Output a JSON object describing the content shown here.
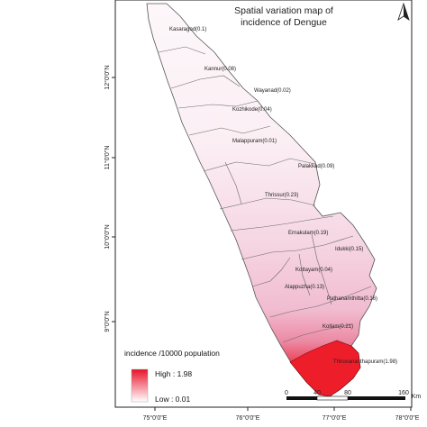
{
  "title_line1": "Spatial variation map of",
  "title_line2": "incidence of Dengue",
  "districts": [
    {
      "name": "Kasaragod",
      "value": "0.1",
      "label": "Kasaragod(0.1)",
      "color": "#fbf2f6"
    },
    {
      "name": "Kannur",
      "value": "0.08",
      "label": "Kannur(0.08)",
      "color": "#fcf4f7"
    },
    {
      "name": "Wayanad",
      "value": "0.02",
      "label": "Wayanad(0.02)",
      "color": "#fefbfc"
    },
    {
      "name": "Kozhikode",
      "value": "0.04",
      "label": "Kozhikode(0.04)",
      "color": "#fdf7fa"
    },
    {
      "name": "Malappuram",
      "value": "0.01",
      "label": "Malappuram(0.01)",
      "color": "#fefcfd"
    },
    {
      "name": "Palakkad",
      "value": "0.09",
      "label": "Palakkad(0.09)",
      "color": "#fbf1f5"
    },
    {
      "name": "Thrissur",
      "value": "0.23",
      "label": "Thrissur(0.23)",
      "color": "#f7dce8"
    },
    {
      "name": "Ernakulam",
      "value": "0.19",
      "label": "Ernakulam(0.19)",
      "color": "#f8e0eb"
    },
    {
      "name": "Idukki",
      "value": "0.15",
      "label": "Idukki(0.15)",
      "color": "#f9e6ef"
    },
    {
      "name": "Kottayam",
      "value": "0.04",
      "label": "Kottayam(0.04)",
      "color": "#fdf5f8"
    },
    {
      "name": "Alappuzha",
      "value": "0.13",
      "label": "Alappuzha(0.13)",
      "color": "#f9e8f0"
    },
    {
      "name": "Pathanamthitta",
      "value": "0.16",
      "label": "Pathanamthitta(0.16)",
      "color": "#f8e2ec"
    },
    {
      "name": "Kollam",
      "value": "0.21",
      "label": "Kollam(0.21)",
      "color": "#f5d3e1"
    },
    {
      "name": "Thiruvananthapuram",
      "value": "1.98",
      "label": "Thiruvananthapuram(1.98)",
      "color": "#ee1d2a"
    }
  ],
  "legend": {
    "title": "incidence /10000 population",
    "high": "High : 1.98",
    "low": "Low : 0.01",
    "high_color": "#e8132a",
    "low_color": "#ffffff"
  },
  "latitude_ticks": [
    "12°0'0\"N",
    "11°0'0\"N",
    "10°0'0\"N",
    "9°0'0\"N"
  ],
  "longitude_ticks": [
    "75°0'0\"E",
    "76°0'0\"E",
    "77°0'0\"E",
    "78°0'0\"E"
  ],
  "scale_bar": {
    "ticks": [
      "0",
      "40",
      "80",
      "160"
    ],
    "unit": "Km"
  }
}
